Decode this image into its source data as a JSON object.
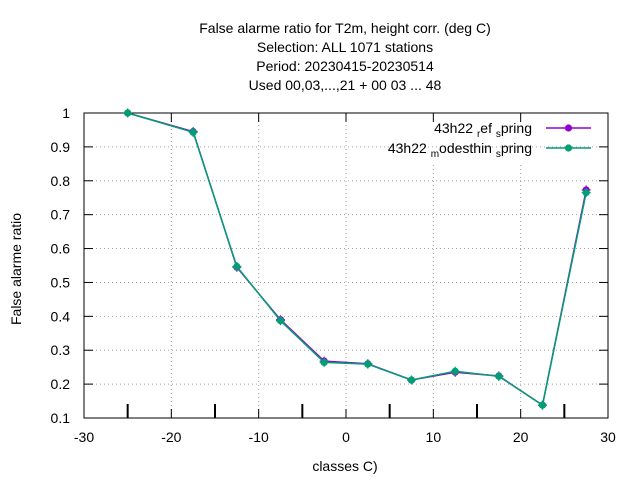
{
  "chart_data": {
    "type": "line",
    "title_lines": [
      "False alarme ratio  for T2m, height corr. (deg C)",
      "Selection: ALL   1071 stations",
      "Period: 20230415-20230514",
      "Used  00,03,...,21  + 00 03 ... 48"
    ],
    "xlabel": "classes C)",
    "ylabel": "False alarme ratio",
    "xlim": [
      -30,
      30
    ],
    "ylim": [
      0.1,
      1.0
    ],
    "xticks": [
      -30,
      -20,
      -10,
      0,
      10,
      20,
      30
    ],
    "yticks": [
      0.1,
      0.2,
      0.3,
      0.4,
      0.5,
      0.6,
      0.7,
      0.8,
      0.9,
      1.0
    ],
    "grid": true,
    "legend_position": "top-right",
    "series": [
      {
        "name": "43h22_ref_spring",
        "legend_parts": [
          "43h22 ",
          "r",
          "ef ",
          "s",
          "pring"
        ],
        "color": "#9400d3",
        "x": [
          -25,
          -17.5,
          -12.5,
          -7.5,
          -2.5,
          2.5,
          7.5,
          12.5,
          17.5,
          22.5,
          27.5
        ],
        "y": [
          1.0,
          0.945,
          0.545,
          0.39,
          0.268,
          0.26,
          0.212,
          0.235,
          0.224,
          0.138,
          0.773
        ]
      },
      {
        "name": "43h22_modesthin_spring",
        "legend_parts": [
          "43h22 ",
          "m",
          "odesthin ",
          "s",
          "pring"
        ],
        "color": "#009e73",
        "x": [
          -25,
          -17.5,
          -12.5,
          -7.5,
          -2.5,
          2.5,
          7.5,
          12.5,
          17.5,
          22.5,
          27.5
        ],
        "y": [
          1.0,
          0.943,
          0.547,
          0.387,
          0.264,
          0.259,
          0.212,
          0.238,
          0.223,
          0.138,
          0.765
        ]
      }
    ]
  }
}
